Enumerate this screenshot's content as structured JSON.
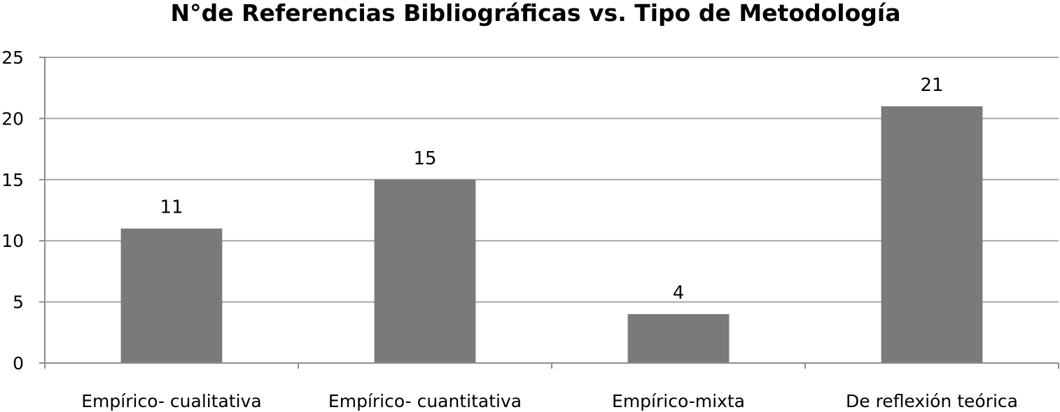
{
  "chart_data": {
    "type": "bar",
    "title": "N°de Referencias Bibliográficas vs. Tipo de Metodología",
    "xlabel": "",
    "ylabel": "",
    "categories": [
      "Empírico- cualitativa",
      "Empírico- cuantitativa",
      "Empírico-mixta",
      "De reflexión teórica"
    ],
    "values": [
      11,
      15,
      4,
      21
    ],
    "data_labels": [
      "11",
      "15",
      "4",
      "21"
    ],
    "ylim": [
      0,
      25
    ],
    "yticks": [
      0,
      5,
      10,
      15,
      20,
      25
    ],
    "grid": true,
    "legend": "none",
    "colors": {
      "bar": "#7a7a7a",
      "grid": "#a6a6a6",
      "axis": "#8c8c8c",
      "text": "#000000"
    }
  }
}
